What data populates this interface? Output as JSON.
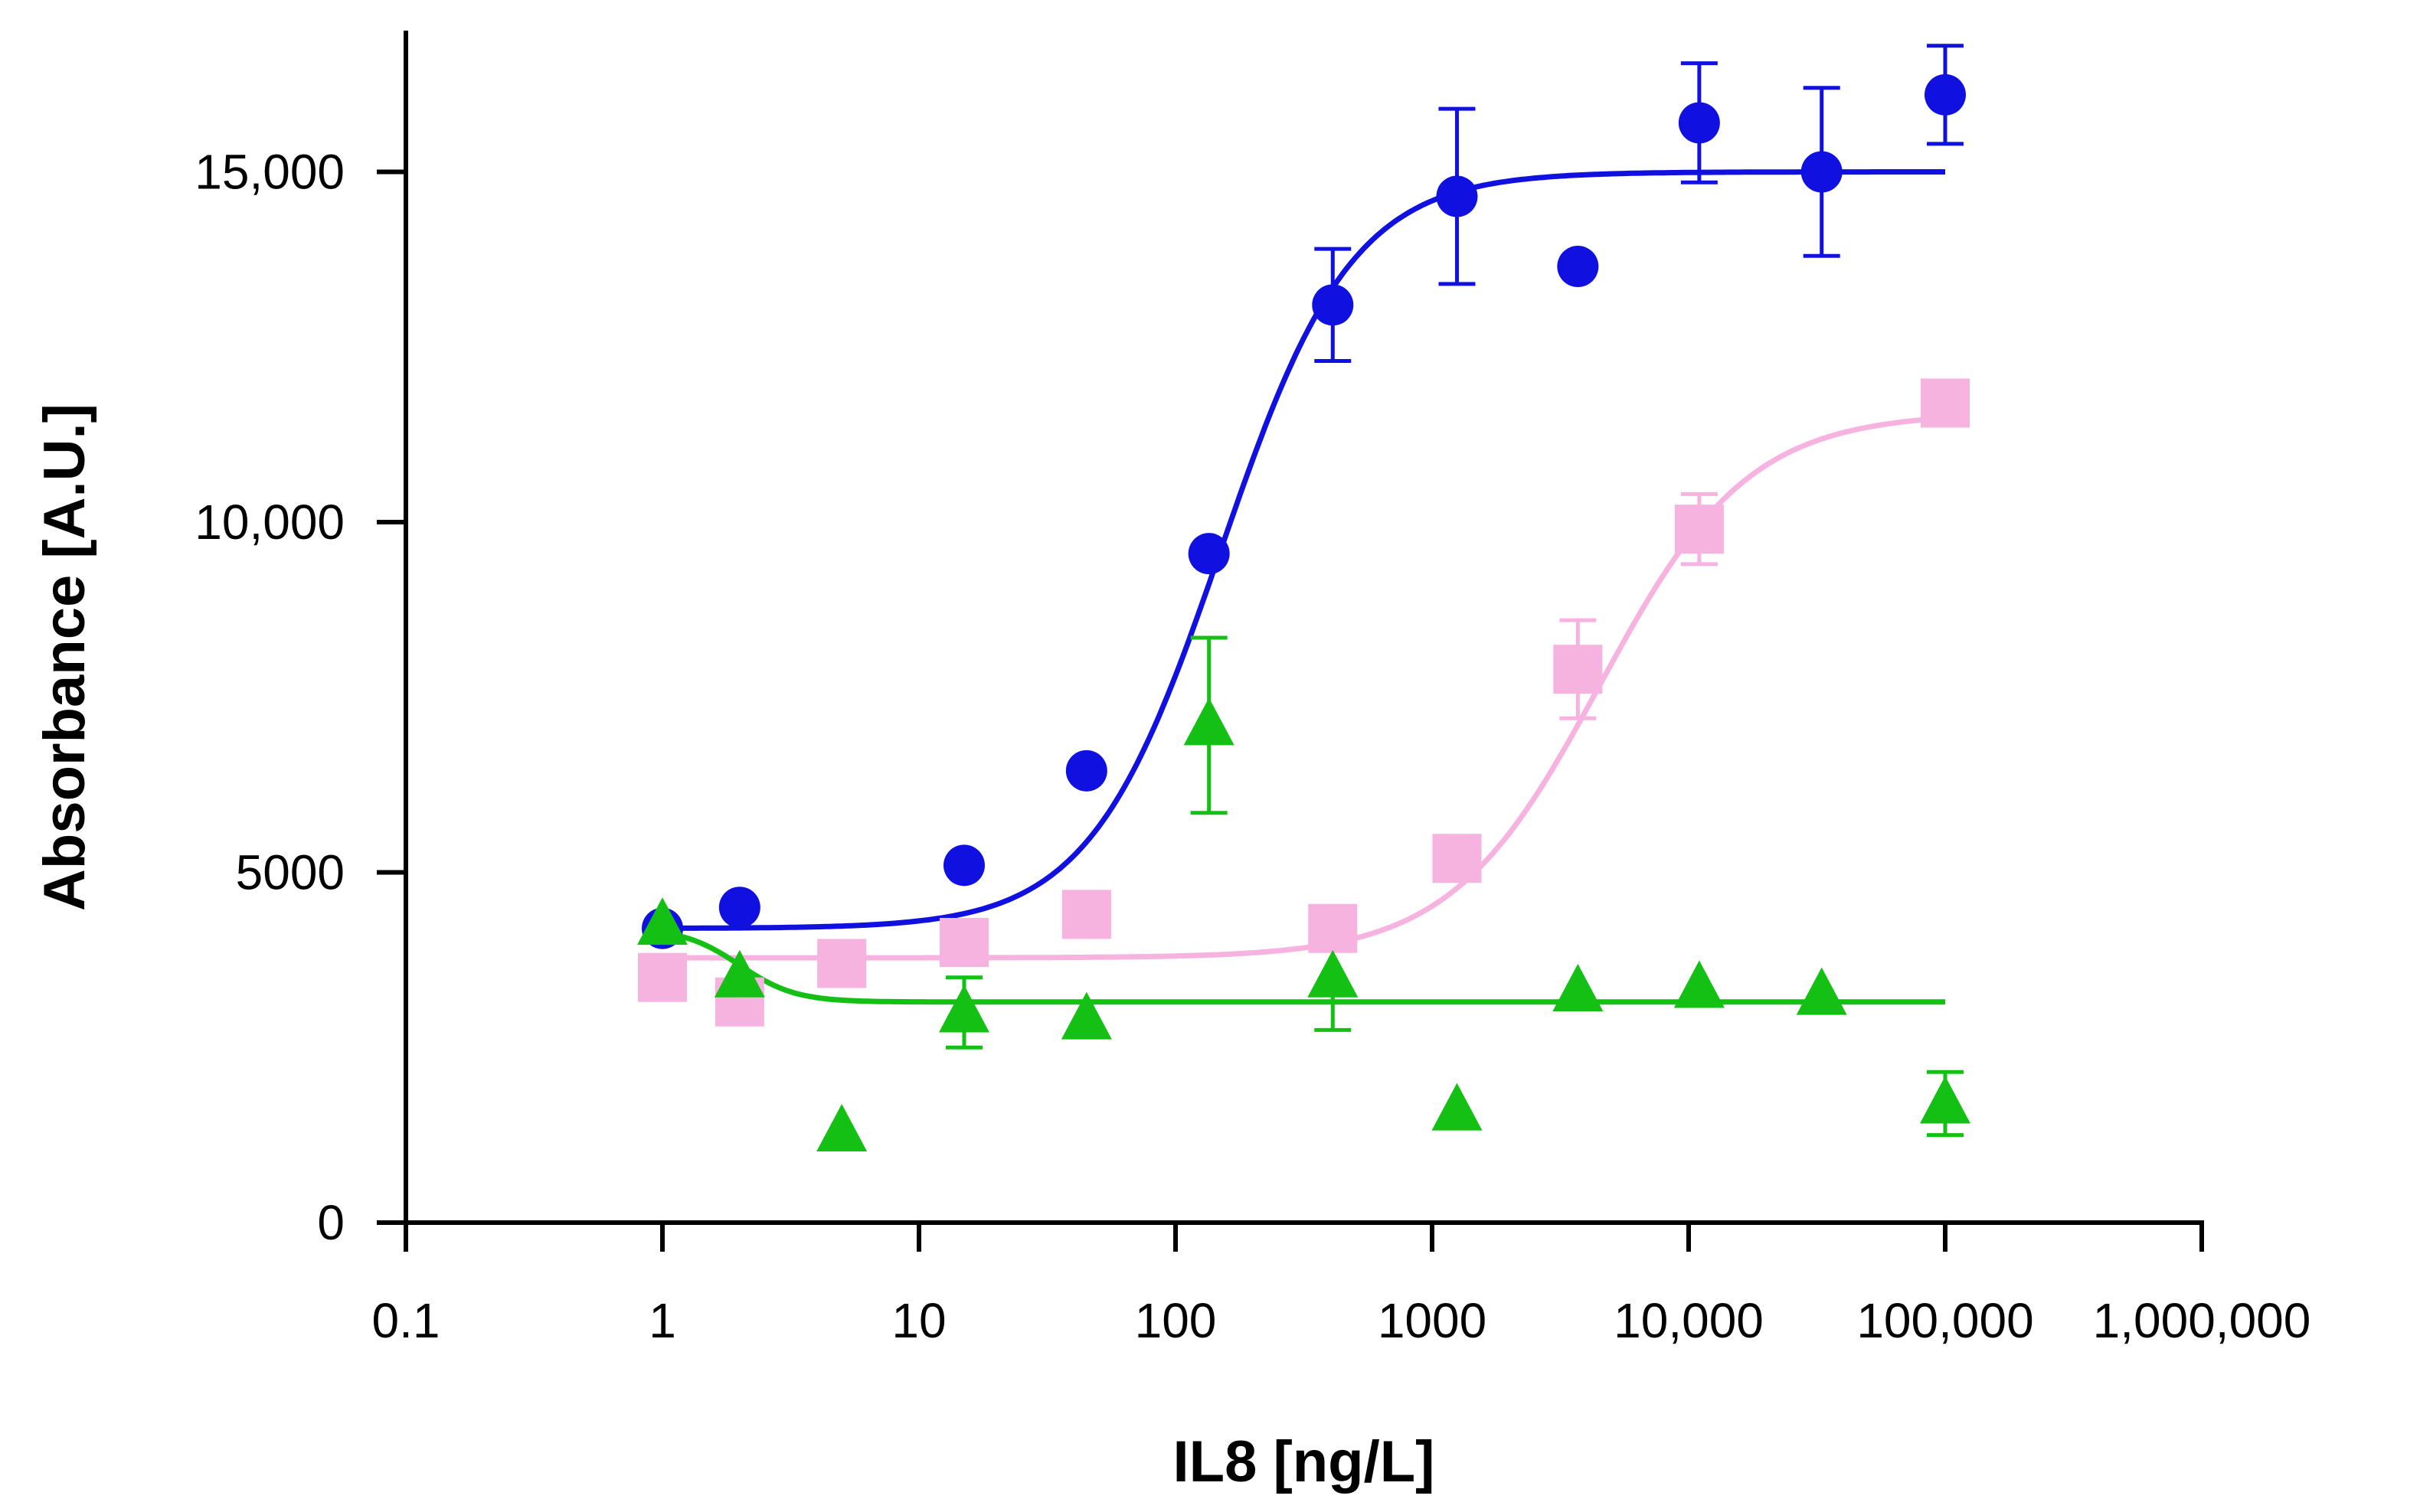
{
  "chart_data": {
    "type": "scatter",
    "title": "",
    "xlabel": "IL8 [ng/L]",
    "ylabel": "Absorbance [A.U.]",
    "xscale": "log",
    "xlim": [
      0.1,
      1000000
    ],
    "ylim": [
      0,
      17000
    ],
    "grid": false,
    "x_ticks": [
      0.1,
      1,
      10,
      100,
      1000,
      10000,
      100000,
      1000000
    ],
    "x_tick_labels": [
      "0.1",
      "1",
      "10",
      "100",
      "1000",
      "10,000",
      "100,000",
      "1,000,000"
    ],
    "y_ticks": [
      0,
      5000,
      10000,
      15000
    ],
    "y_tick_labels": [
      "0",
      "5000",
      "10,000",
      "15,000"
    ],
    "series": [
      {
        "name": "blue",
        "color": "#1010e0",
        "marker": "circle",
        "points": [
          {
            "x": 1,
            "y": 4200
          },
          {
            "x": 2,
            "y": 4500
          },
          {
            "x": 15,
            "y": 5100
          },
          {
            "x": 45,
            "y": 6450
          },
          {
            "x": 135,
            "y": 9550
          },
          {
            "x": 410,
            "y": 13100,
            "err": 800
          },
          {
            "x": 1250,
            "y": 14650,
            "err": 1250
          },
          {
            "x": 3700,
            "y": 13650
          },
          {
            "x": 11000,
            "y": 15700,
            "err": 850
          },
          {
            "x": 33000,
            "y": 15000,
            "err": 1200
          },
          {
            "x": 100000,
            "y": 16100,
            "err": 700
          }
        ],
        "fit": {
          "bottom": 4200,
          "top": 15000,
          "ec50": 150,
          "hill": 1.7,
          "x_start": 1,
          "x_end": 100000
        }
      },
      {
        "name": "pink",
        "color": "#f7b3e0",
        "marker": "square",
        "points": [
          {
            "x": 1,
            "y": 3500
          },
          {
            "x": 2,
            "y": 3150
          },
          {
            "x": 5,
            "y": 3700
          },
          {
            "x": 15,
            "y": 4000
          },
          {
            "x": 45,
            "y": 4400
          },
          {
            "x": 410,
            "y": 4200
          },
          {
            "x": 1250,
            "y": 5200
          },
          {
            "x": 3700,
            "y": 7900,
            "err": 700
          },
          {
            "x": 11000,
            "y": 9900,
            "err": 500
          },
          {
            "x": 100000,
            "y": 11700
          }
        ],
        "fit": {
          "bottom": 3780,
          "top": 11560,
          "ec50": 4500,
          "hill": 1.5,
          "x_start": 1,
          "x_end": 100000
        }
      },
      {
        "name": "green",
        "color": "#13c013",
        "marker": "triangle",
        "points": [
          {
            "x": 1,
            "y": 4250
          },
          {
            "x": 2,
            "y": 3500
          },
          {
            "x": 5,
            "y": 1300
          },
          {
            "x": 15,
            "y": 3000,
            "err": 500
          },
          {
            "x": 45,
            "y": 2900
          },
          {
            "x": 135,
            "y": 7100,
            "err": 1250
          },
          {
            "x": 410,
            "y": 3500,
            "err": 750
          },
          {
            "x": 1250,
            "y": 1600
          },
          {
            "x": 3700,
            "y": 3300
          },
          {
            "x": 11000,
            "y": 3350
          },
          {
            "x": 33000,
            "y": 3250
          },
          {
            "x": 100000,
            "y": 1700,
            "err": 450
          }
        ],
        "fit": {
          "bottom": 3150,
          "top": 4200,
          "ec50": 2,
          "hill": -4,
          "x_start": 1,
          "x_end": 100000
        }
      }
    ]
  }
}
